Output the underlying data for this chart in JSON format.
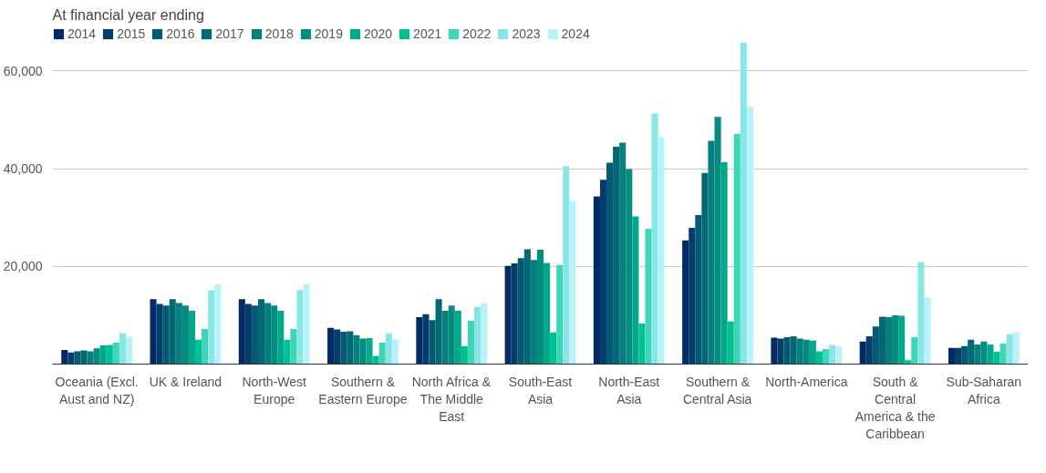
{
  "chart_data": {
    "type": "bar",
    "legend_title": "At financial year ending",
    "legend": "top",
    "grid": "y",
    "categories": [
      "Oceania (Excl. Aust and NZ)",
      "UK & Ireland",
      "North-West Europe",
      "Southern & Eastern Europe",
      "North Africa & The Middle East",
      "South-East Asia",
      "North-East Asia",
      "Southern & Central Asia",
      "North-America",
      "South & Central America & the Caribbean",
      "Sub-Saharan Africa"
    ],
    "ylim": [
      0,
      69000
    ],
    "yticks": [
      {
        "value": 0,
        "label": null
      },
      {
        "value": 20000,
        "label": "20,000"
      },
      {
        "value": 40000,
        "label": "40,000"
      },
      {
        "value": 60000,
        "label": "60,000"
      }
    ],
    "series": [
      {
        "name": "2014",
        "color": "#022a64",
        "values": [
          2900,
          13300,
          13300,
          7400,
          9600,
          20100,
          34300,
          25300,
          5400,
          4600,
          3300
        ]
      },
      {
        "name": "2015",
        "color": "#023d6b",
        "values": [
          2400,
          12300,
          12300,
          7100,
          10200,
          20600,
          37700,
          27900,
          5200,
          5700,
          3300
        ]
      },
      {
        "name": "2016",
        "color": "#045a72",
        "values": [
          2600,
          12000,
          12000,
          6600,
          9000,
          21700,
          41200,
          30500,
          5500,
          7700,
          3700
        ]
      },
      {
        "name": "2017",
        "color": "#036874",
        "values": [
          2800,
          13300,
          13300,
          6700,
          13300,
          23500,
          44500,
          39100,
          5700,
          9700,
          5000
        ]
      },
      {
        "name": "2018",
        "color": "#05807f",
        "values": [
          2600,
          12500,
          12500,
          5900,
          10900,
          21300,
          45300,
          45700,
          5200,
          9600,
          4000
        ]
      },
      {
        "name": "2019",
        "color": "#048c7f",
        "values": [
          3200,
          12000,
          12000,
          5200,
          12000,
          23400,
          39900,
          50600,
          5000,
          10000,
          4600
        ]
      },
      {
        "name": "2020",
        "color": "#00a98b",
        "values": [
          3800,
          10900,
          10900,
          5300,
          10900,
          20700,
          30200,
          41300,
          4800,
          9900,
          4000
        ]
      },
      {
        "name": "2021",
        "color": "#00c193",
        "values": [
          3900,
          5000,
          5000,
          1700,
          3700,
          6500,
          8300,
          8700,
          2600,
          800,
          2500
        ]
      },
      {
        "name": "2022",
        "color": "#3dd6b8",
        "values": [
          4400,
          7200,
          7200,
          4400,
          8900,
          20300,
          27700,
          47100,
          3100,
          5500,
          4200
        ]
      },
      {
        "name": "2023",
        "color": "#88e6e4",
        "values": [
          6300,
          15100,
          15100,
          6300,
          11700,
          40500,
          51300,
          65800,
          3900,
          20900,
          6100
        ]
      },
      {
        "name": "2024",
        "color": "#b8f3fb",
        "values": [
          5600,
          16300,
          16300,
          5000,
          12500,
          33400,
          46500,
          52700,
          3700,
          13600,
          6500
        ]
      }
    ]
  }
}
